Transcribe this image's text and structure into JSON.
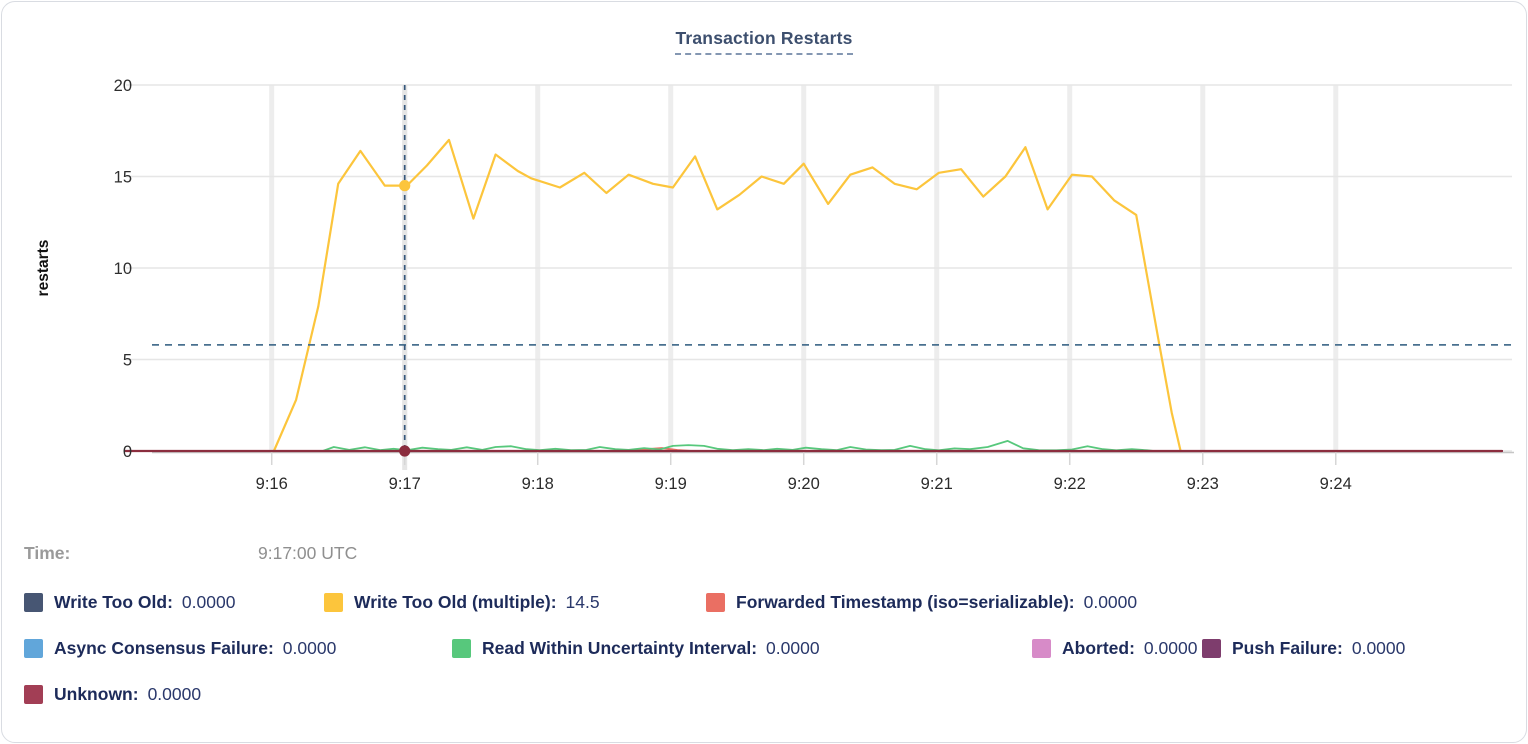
{
  "title": "Transaction Restarts",
  "time_row": {
    "label": "Time:",
    "value": "9:17:00 UTC"
  },
  "chart_data": {
    "type": "line",
    "title": "Transaction Restarts",
    "ylabel": "restarts",
    "xlabel": "",
    "grid": true,
    "ylim": [
      0,
      20
    ],
    "y_ticks": [
      0,
      5,
      10,
      15,
      20
    ],
    "x_ticks": [
      {
        "label": "9:16",
        "t": 60
      },
      {
        "label": "9:17",
        "t": 120
      },
      {
        "label": "9:18",
        "t": 180
      },
      {
        "label": "9:19",
        "t": 240
      },
      {
        "label": "9:20",
        "t": 300
      },
      {
        "label": "9:21",
        "t": 360
      },
      {
        "label": "9:22",
        "t": 420
      },
      {
        "label": "9:23",
        "t": 480
      },
      {
        "label": "9:24",
        "t": 540
      }
    ],
    "x_window_seconds_after_9_15": [
      -6,
      615
    ],
    "hover": {
      "time": "9:17:00 UTC",
      "t": 120,
      "h_line_value": 5.8,
      "marked": [
        {
          "series": "Write Too Old (multiple)",
          "value": 14.5
        },
        {
          "series": "Unknown",
          "value": 0
        }
      ]
    },
    "series": [
      {
        "name": "Write Too Old",
        "slug": "write-too-old",
        "color": "#475673",
        "value_at_hover": "0.0000",
        "width": 2,
        "points": [
          [
            -6,
            0
          ],
          [
            615,
            0
          ]
        ]
      },
      {
        "name": "Write Too Old (multiple)",
        "slug": "write-too-old-multiple",
        "color": "#fcc53c",
        "value_at_hover": "14.5",
        "width": 2.2,
        "points": [
          [
            61,
            0
          ],
          [
            71,
            2.8
          ],
          [
            81,
            7.9
          ],
          [
            90,
            14.6
          ],
          [
            100,
            16.4
          ],
          [
            111,
            14.5
          ],
          [
            121,
            14.5
          ],
          [
            130,
            15.6
          ],
          [
            140,
            17.0
          ],
          [
            151,
            12.7
          ],
          [
            161,
            16.2
          ],
          [
            171,
            15.3
          ],
          [
            177,
            14.9
          ],
          [
            190,
            14.4
          ],
          [
            201,
            15.2
          ],
          [
            211,
            14.1
          ],
          [
            221,
            15.1
          ],
          [
            232,
            14.6
          ],
          [
            241,
            14.4
          ],
          [
            251,
            16.1
          ],
          [
            261,
            13.2
          ],
          [
            271,
            14.0
          ],
          [
            281,
            15.0
          ],
          [
            291,
            14.6
          ],
          [
            300,
            15.7
          ],
          [
            311,
            13.5
          ],
          [
            321,
            15.1
          ],
          [
            331,
            15.5
          ],
          [
            341,
            14.6
          ],
          [
            351,
            14.3
          ],
          [
            361,
            15.2
          ],
          [
            371,
            15.4
          ],
          [
            381,
            13.9
          ],
          [
            391,
            15.0
          ],
          [
            400,
            16.6
          ],
          [
            410,
            13.2
          ],
          [
            421,
            15.1
          ],
          [
            430,
            15.0
          ],
          [
            440,
            13.7
          ],
          [
            450,
            12.9
          ],
          [
            460,
            6.1
          ],
          [
            466,
            2.1
          ],
          [
            470,
            0
          ]
        ]
      },
      {
        "name": "Forwarded Timestamp (iso=serializable)",
        "slug": "forwarded-timestamp",
        "color": "#ea6f63",
        "value_at_hover": "0.0000",
        "width": 2,
        "points": [
          [
            -6,
            0
          ],
          [
            222,
            0
          ],
          [
            229,
            0.1
          ],
          [
            236,
            0.16
          ],
          [
            243,
            0.05
          ],
          [
            249,
            0
          ],
          [
            615,
            0
          ]
        ]
      },
      {
        "name": "Async Consensus Failure",
        "slug": "async-consensus-failure",
        "color": "#61a6da",
        "value_at_hover": "0.0000",
        "width": 2,
        "points": [
          [
            -6,
            0
          ],
          [
            615,
            0
          ]
        ]
      },
      {
        "name": "Read Within Uncertainty Interval",
        "slug": "read-within-uncertainty-interval",
        "color": "#57c87c",
        "value_at_hover": "0.0000",
        "width": 1.8,
        "points": [
          [
            83,
            0
          ],
          [
            88,
            0.22
          ],
          [
            95,
            0.06
          ],
          [
            102,
            0.2
          ],
          [
            109,
            0.05
          ],
          [
            115,
            0.12
          ],
          [
            121,
            0.04
          ],
          [
            128,
            0.18
          ],
          [
            135,
            0.1
          ],
          [
            141,
            0.06
          ],
          [
            148,
            0.2
          ],
          [
            155,
            0.06
          ],
          [
            161,
            0.22
          ],
          [
            168,
            0.26
          ],
          [
            175,
            0.1
          ],
          [
            181,
            0.05
          ],
          [
            188,
            0.12
          ],
          [
            195,
            0.05
          ],
          [
            202,
            0.06
          ],
          [
            208,
            0.22
          ],
          [
            215,
            0.1
          ],
          [
            221,
            0.06
          ],
          [
            228,
            0.16
          ],
          [
            235,
            0.08
          ],
          [
            241,
            0.28
          ],
          [
            248,
            0.32
          ],
          [
            255,
            0.28
          ],
          [
            261,
            0.12
          ],
          [
            268,
            0.05
          ],
          [
            275,
            0.1
          ],
          [
            282,
            0.05
          ],
          [
            288,
            0.12
          ],
          [
            295,
            0.06
          ],
          [
            301,
            0.18
          ],
          [
            308,
            0.1
          ],
          [
            315,
            0.05
          ],
          [
            321,
            0.22
          ],
          [
            328,
            0.08
          ],
          [
            335,
            0.05
          ],
          [
            341,
            0.06
          ],
          [
            348,
            0.28
          ],
          [
            355,
            0.1
          ],
          [
            361,
            0.04
          ],
          [
            368,
            0.14
          ],
          [
            375,
            0.1
          ],
          [
            383,
            0.22
          ],
          [
            392,
            0.55
          ],
          [
            399,
            0.15
          ],
          [
            406,
            0.05
          ],
          [
            414,
            0.04
          ],
          [
            421,
            0.08
          ],
          [
            428,
            0.26
          ],
          [
            435,
            0.1
          ],
          [
            441,
            0.04
          ],
          [
            448,
            0.1
          ],
          [
            455,
            0.04
          ],
          [
            458,
            0
          ]
        ]
      },
      {
        "name": "Aborted",
        "slug": "aborted",
        "color": "#d78bc8",
        "value_at_hover": "0.0000",
        "width": 2,
        "points": [
          [
            -6,
            0
          ],
          [
            615,
            0
          ]
        ]
      },
      {
        "name": "Push Failure",
        "slug": "push-failure",
        "color": "#7e3d6d",
        "value_at_hover": "0.0000",
        "width": 2,
        "points": [
          [
            -6,
            0
          ],
          [
            615,
            0
          ]
        ]
      },
      {
        "name": "Unknown",
        "slug": "unknown",
        "color": "#a23e55",
        "line_color": "#8b2d3e",
        "value_at_hover": "0.0000",
        "width": 2.2,
        "points": [
          [
            -6,
            0
          ],
          [
            615,
            0
          ]
        ]
      }
    ],
    "legend_rows": [
      [
        0,
        1,
        2
      ],
      [
        3,
        4,
        5,
        6
      ],
      [
        7
      ]
    ],
    "legend_position": "bottom"
  }
}
